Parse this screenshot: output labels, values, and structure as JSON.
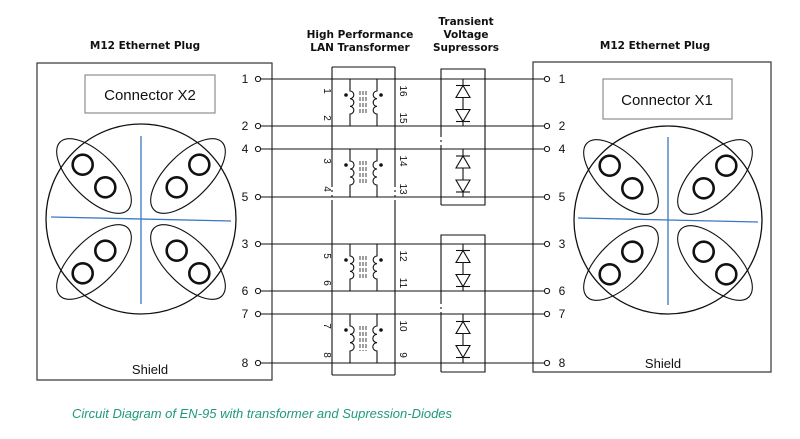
{
  "left_plug": {
    "title": "M12 Ethernet Plug",
    "label": "Connector X2",
    "shield": "Shield"
  },
  "right_plug": {
    "title": "M12 Ethernet Plug",
    "label": "Connector X1",
    "shield": "Shield"
  },
  "transformer": {
    "title_line1": "High Performance",
    "title_line2": "LAN Transformer"
  },
  "tvs": {
    "title_line1": "Transient",
    "title_line2": "Voltage",
    "title_line3": "Supressors"
  },
  "pins": [
    "1",
    "2",
    "4",
    "5",
    "3",
    "6",
    "7",
    "8"
  ],
  "transformer_pins": [
    {
      "left_top": "1",
      "left_bottom": "2",
      "right_top": "16",
      "right_bottom": "15"
    },
    {
      "left_top": "3",
      "left_bottom": "4",
      "right_top": "14",
      "right_bottom": "13"
    },
    {
      "left_top": "5",
      "left_bottom": "6",
      "right_top": "12",
      "right_bottom": "11"
    },
    {
      "left_top": "7",
      "left_bottom": "8",
      "right_top": "10",
      "right_bottom": "9"
    }
  ],
  "caption": "Circuit Diagram of EN-95 with transformer and Supression-Diodes",
  "colors": {
    "caption": "#1e9a7a",
    "axis_lines": "#3a78c2",
    "line": "#111111"
  }
}
